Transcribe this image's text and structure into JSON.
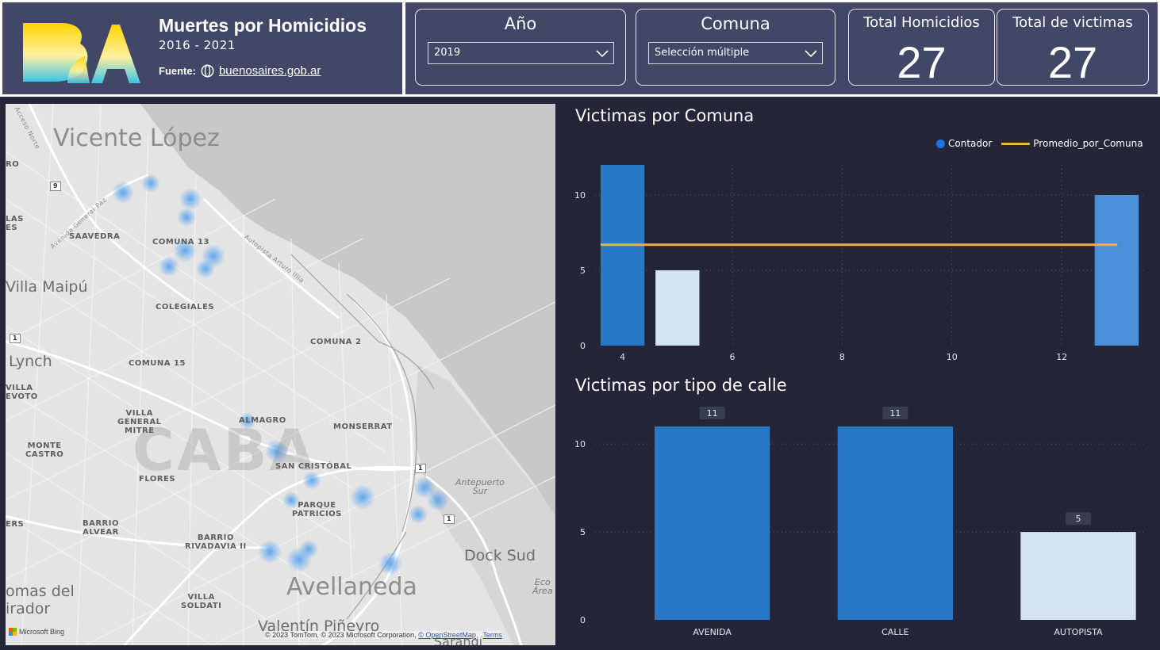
{
  "header": {
    "title": "Muertes por Homicidios",
    "subtitle": "2016 - 2021",
    "source_label": "Fuente:",
    "source_link": "buenosaires.gob.ar",
    "logo_text": "BA"
  },
  "filters": {
    "year": {
      "caption": "Año",
      "value": "2019"
    },
    "comuna": {
      "caption": "Comuna",
      "value": "Selección múltiple"
    }
  },
  "kpis": {
    "total_homicidios": {
      "caption": "Total Homicidios",
      "value": "27"
    },
    "total_victimas": {
      "caption": "Total de victimas",
      "value": "27"
    }
  },
  "map": {
    "labels": {
      "vicente_lopez": "Vicente López",
      "saavedra": "SAAVEDRA",
      "comuna13": "COMUNA 13",
      "villa_maipu": "Villa Maipú",
      "colegiales": "COLEGIALES",
      "comuna2": "COMUNA 2",
      "lynch": "Lynch",
      "comuna15": "COMUNA 15",
      "villa_devoto": "VILLA\nEVOTO",
      "villa_gral_mitre": "VILLA\nGENERAL\nMITRE",
      "almagro": "ALMAGRO",
      "monserrat": "MONSERRAT",
      "monte_castro": "MONTE\nCASTRO",
      "caba": "CABA",
      "san_cristobal": "SAN CRISTÓBAL",
      "flores": "FLORES",
      "antepuerto": "Antepuerto\nSur",
      "parque_patricios": "PARQUE\nPATRICIOS",
      "barrio_alvear": "BARRIO\nALVEAR",
      "barrio_rivadavia": "BARRIO\nRIVADAVIA II",
      "dock_sud": "Dock Sud",
      "eco_area": "Eco\nÁrea",
      "lomas_del_mirador": "omas del\nirador",
      "villa_soldati": "VILLA\nSOLDATI",
      "avellaneda": "Avellaneda",
      "valentin_pineyro": "Valentín Piñeyro",
      "ro": "RO",
      "las": "LAS\nES",
      "ers": "ERS",
      "av_gral_paz": "Avenida General Paz",
      "autopista_illia": "Autopista Arturo Illia",
      "acceso_norte": "Acceso Norte",
      "sarandi": "Sarandí"
    },
    "signs": {
      "s9": "9",
      "s1a": "1",
      "s1b": "1",
      "s1c": "1"
    },
    "bing_label": "Microsoft Bing",
    "attribution": "© 2023 TomTom, © 2023 Microsoft Corporation,",
    "attribution_osm": "© OpenStreetMap",
    "attribution_terms": "Terms"
  },
  "charts": {
    "comuna_title": "Victimas por Comuna",
    "tipo_title": "Victimas por tipo de calle",
    "legend_contador": "Contador",
    "legend_promedio": "Promedio_por_Comuna"
  },
  "chart_data": [
    {
      "type": "bar",
      "title": "Victimas por Comuna",
      "series": [
        {
          "name": "Contador",
          "x": [
            4,
            5,
            13
          ],
          "values": [
            12,
            5,
            10
          ],
          "colors": [
            "#2878c8",
            "#d2e4f6",
            "#4a90d8"
          ]
        },
        {
          "name": "Promedio_por_Comuna",
          "type": "line",
          "x": [
            4,
            13
          ],
          "values": [
            6.7,
            6.7
          ],
          "color": "#f0b428"
        }
      ],
      "xticks": [
        4,
        6,
        8,
        10,
        12
      ],
      "yticks": [
        0,
        5,
        10
      ],
      "xlim": [
        3.5,
        13.5
      ],
      "ylim": [
        0,
        12
      ],
      "legend": "top-right",
      "grid": true
    },
    {
      "type": "bar",
      "title": "Victimas por tipo de calle",
      "categories": [
        "AVENIDA",
        "CALLE",
        "AUTOPISTA"
      ],
      "values": [
        11,
        11,
        5
      ],
      "colors": [
        "#2878c8",
        "#2878c8",
        "#d2e4f6"
      ],
      "yticks": [
        0,
        5,
        10
      ],
      "ylim": [
        0,
        11
      ],
      "data_labels": true,
      "grid": true
    }
  ]
}
